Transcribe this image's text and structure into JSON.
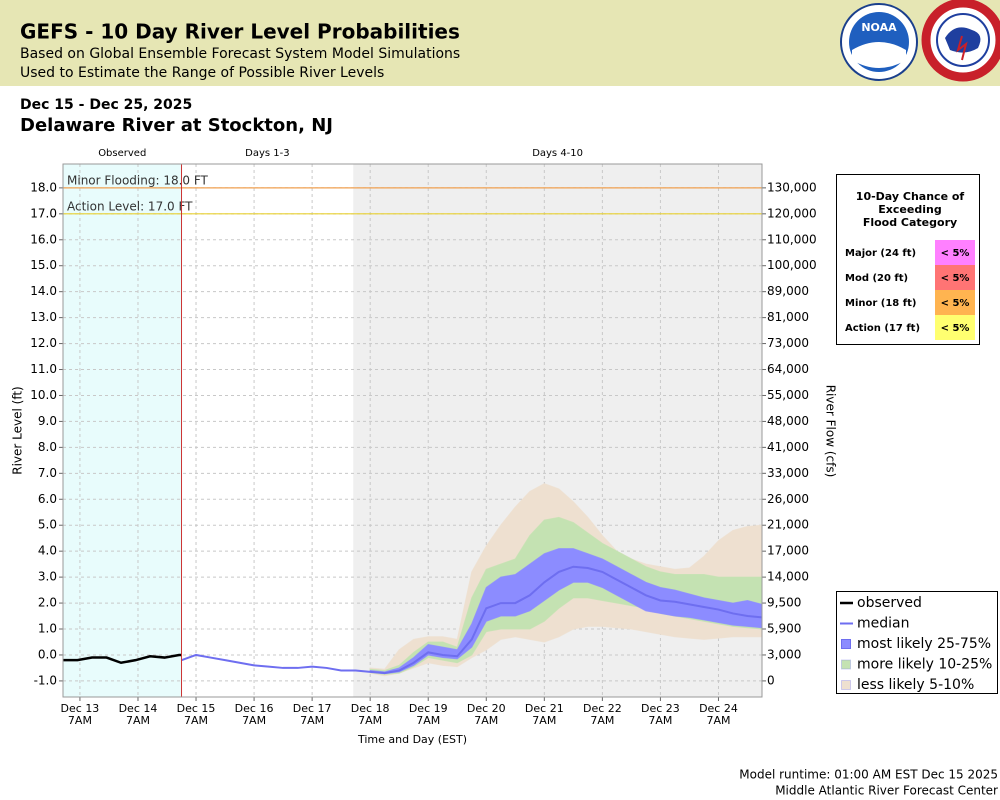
{
  "header": {
    "title": "GEFS - 10 Day River Level Probabilities",
    "subtitle": "Based on Global Ensemble Forecast System Model Simulations",
    "subtitle2": "Used to Estimate the Range of Possible River Levels",
    "logo_text": "NOAA"
  },
  "chart_data": {
    "type": "river-probability",
    "date_range": "Dec 15 - Dec 25, 2025",
    "title": "Delaware River at Stockton, NJ",
    "ylabel": "River Level (ft)",
    "y2label": "River Flow (cfs)",
    "xlabel": "Time and Day (EST)",
    "xlim": [
      "2025-12-13T00:00",
      "2025-12-25T01:00"
    ],
    "ylim": [
      -1.62,
      18.92
    ],
    "grid": true,
    "now_line_color": "#cc3333",
    "xticks": [
      {
        "value": "2025-12-13T07:00",
        "label": "Dec 13\n7AM"
      },
      {
        "value": "2025-12-14T07:00",
        "label": "Dec 14\n7AM"
      },
      {
        "value": "2025-12-15T07:00",
        "label": "Dec 15\n7AM"
      },
      {
        "value": "2025-12-16T07:00",
        "label": "Dec 16\n7AM"
      },
      {
        "value": "2025-12-17T07:00",
        "label": "Dec 17\n7AM"
      },
      {
        "value": "2025-12-18T07:00",
        "label": "Dec 18\n7AM"
      },
      {
        "value": "2025-12-19T07:00",
        "label": "Dec 19\n7AM"
      },
      {
        "value": "2025-12-20T07:00",
        "label": "Dec 20\n7AM"
      },
      {
        "value": "2025-12-21T07:00",
        "label": "Dec 21\n7AM"
      },
      {
        "value": "2025-12-22T07:00",
        "label": "Dec 22\n7AM"
      },
      {
        "value": "2025-12-23T07:00",
        "label": "Dec 23\n7AM"
      },
      {
        "value": "2025-12-24T07:00",
        "label": "Dec 24\n7AM"
      }
    ],
    "yticks": [
      {
        "value": -1,
        "label": "-1.0"
      },
      {
        "value": 0,
        "label": "0.0"
      },
      {
        "value": 1,
        "label": "1.0"
      },
      {
        "value": 2,
        "label": "2.0"
      },
      {
        "value": 3,
        "label": "3.0"
      },
      {
        "value": 4,
        "label": "4.0"
      },
      {
        "value": 5,
        "label": "5.0"
      },
      {
        "value": 6,
        "label": "6.0"
      },
      {
        "value": 7,
        "label": "7.0"
      },
      {
        "value": 8,
        "label": "8.0"
      },
      {
        "value": 9,
        "label": "9.0"
      },
      {
        "value": 10,
        "label": "10.0"
      },
      {
        "value": 11,
        "label": "11.0"
      },
      {
        "value": 12,
        "label": "12.0"
      },
      {
        "value": 13,
        "label": "13.0"
      },
      {
        "value": 14,
        "label": "14.0"
      },
      {
        "value": 15,
        "label": "15.0"
      },
      {
        "value": 16,
        "label": "16.0"
      },
      {
        "value": 17,
        "label": "17.0"
      },
      {
        "value": 18,
        "label": "18.0"
      }
    ],
    "y2ticks": [
      0,
      {
        "value": 3000,
        "label": "3,000"
      },
      {
        "value": 5900,
        "label": "5,900"
      },
      {
        "value": 9500,
        "label": "9,500"
      },
      {
        "value": 14000,
        "label": "14,000"
      },
      {
        "value": 17000,
        "label": "17,000"
      },
      {
        "value": 21000,
        "label": "21,000"
      },
      {
        "value": 26000,
        "label": "26,000"
      },
      {
        "value": 33000,
        "label": "33,000"
      },
      {
        "value": 41000,
        "label": "41,000"
      },
      {
        "value": 48000,
        "label": "48,000"
      },
      {
        "value": 55000,
        "label": "55,000"
      },
      {
        "value": 64000,
        "label": "64,000"
      },
      {
        "value": 73000,
        "label": "73,000"
      },
      {
        "value": 81000,
        "label": "81,000"
      },
      {
        "value": 89000,
        "label": "89,000"
      },
      {
        "value": 100000,
        "label": "100,000"
      },
      {
        "value": 110000,
        "label": "110,000"
      },
      {
        "value": 120000,
        "label": "120,000"
      },
      {
        "value": 130000,
        "label": "130,000"
      }
    ],
    "periods": [
      {
        "label": "Observed",
        "start": "2025-12-13T00:00",
        "end": "2025-12-15T01:00",
        "color": "#e8fcfc"
      },
      {
        "label": "Days 1-3",
        "start": "2025-12-15T01:00",
        "end": "2025-12-18T00:00",
        "color": "#ffffff"
      },
      {
        "label": "Days 4-10",
        "start": "2025-12-18T00:00",
        "end": "2025-12-25T01:00",
        "color": "#efefef"
      }
    ],
    "thresholds": [
      {
        "label": "Minor Flooding: 18.0 FT",
        "value": 18,
        "color": "#f0a050"
      },
      {
        "label": "Action Level: 17.0 FT",
        "value": 17,
        "color": "#e8d030"
      }
    ],
    "series": [
      {
        "name": "observed",
        "color": "#000000",
        "x": [
          "2025-12-13T00:00",
          "2025-12-13T06:00",
          "2025-12-13T12:00",
          "2025-12-13T18:00",
          "2025-12-14T00:00",
          "2025-12-14T06:00",
          "2025-12-14T12:00",
          "2025-12-14T18:00",
          "2025-12-15T00:00",
          "2025-12-15T01:00"
        ],
        "values": [
          -0.2,
          -0.2,
          -0.1,
          -0.1,
          -0.3,
          -0.2,
          -0.05,
          -0.1,
          0.0,
          0.0
        ]
      },
      {
        "name": "median",
        "color": "#6e6ef0",
        "x": [
          "2025-12-15T01:00",
          "2025-12-15T07:00",
          "2025-12-15T13:00",
          "2025-12-15T19:00",
          "2025-12-16T01:00",
          "2025-12-16T07:00",
          "2025-12-16T13:00",
          "2025-12-16T19:00",
          "2025-12-17T01:00",
          "2025-12-17T07:00",
          "2025-12-17T13:00",
          "2025-12-17T19:00",
          "2025-12-18T01:00",
          "2025-12-18T07:00",
          "2025-12-18T13:00",
          "2025-12-18T19:00",
          "2025-12-19T01:00",
          "2025-12-19T07:00",
          "2025-12-19T13:00",
          "2025-12-19T19:00",
          "2025-12-20T01:00",
          "2025-12-20T07:00",
          "2025-12-20T13:00",
          "2025-12-20T19:00",
          "2025-12-21T01:00",
          "2025-12-21T07:00",
          "2025-12-21T13:00",
          "2025-12-21T19:00",
          "2025-12-22T01:00",
          "2025-12-22T07:00",
          "2025-12-22T13:00",
          "2025-12-22T19:00",
          "2025-12-23T01:00",
          "2025-12-23T07:00",
          "2025-12-23T13:00",
          "2025-12-23T19:00",
          "2025-12-24T01:00",
          "2025-12-24T07:00",
          "2025-12-24T13:00",
          "2025-12-24T19:00",
          "2025-12-25T01:00"
        ],
        "values": [
          -0.2,
          0.0,
          -0.1,
          -0.2,
          -0.3,
          -0.4,
          -0.45,
          -0.5,
          -0.5,
          -0.45,
          -0.5,
          -0.6,
          -0.6,
          -0.65,
          -0.7,
          -0.6,
          -0.3,
          0.1,
          0.0,
          -0.05,
          0.6,
          1.8,
          2.0,
          2.0,
          2.3,
          2.8,
          3.2,
          3.4,
          3.35,
          3.2,
          2.9,
          2.6,
          2.3,
          2.1,
          2.05,
          1.95,
          1.85,
          1.75,
          1.6,
          1.5,
          1.45
        ]
      }
    ],
    "bands": [
      {
        "name": "most likely 25-75%",
        "color": "#8c8cff",
        "x": [
          "2025-12-18T07:00",
          "2025-12-18T13:00",
          "2025-12-18T19:00",
          "2025-12-19T01:00",
          "2025-12-19T07:00",
          "2025-12-19T13:00",
          "2025-12-19T19:00",
          "2025-12-20T01:00",
          "2025-12-20T07:00",
          "2025-12-20T13:00",
          "2025-12-20T19:00",
          "2025-12-21T01:00",
          "2025-12-21T07:00",
          "2025-12-21T13:00",
          "2025-12-21T19:00",
          "2025-12-22T01:00",
          "2025-12-22T07:00",
          "2025-12-22T13:00",
          "2025-12-22T19:00",
          "2025-12-23T01:00",
          "2025-12-23T07:00",
          "2025-12-23T13:00",
          "2025-12-23T19:00",
          "2025-12-24T01:00",
          "2025-12-24T07:00",
          "2025-12-24T13:00",
          "2025-12-24T19:00",
          "2025-12-25T01:00"
        ],
        "low": [
          -0.65,
          -0.72,
          -0.65,
          -0.4,
          0.0,
          -0.1,
          -0.15,
          0.3,
          1.3,
          1.5,
          1.5,
          1.7,
          2.1,
          2.5,
          2.8,
          2.8,
          2.6,
          2.3,
          2.0,
          1.7,
          1.6,
          1.5,
          1.45,
          1.35,
          1.25,
          1.15,
          1.1,
          1.05
        ],
        "high": [
          -0.6,
          -0.65,
          -0.5,
          -0.1,
          0.4,
          0.3,
          0.2,
          1.2,
          2.6,
          3.0,
          3.1,
          3.5,
          3.9,
          4.1,
          4.1,
          3.9,
          3.7,
          3.4,
          3.1,
          2.8,
          2.6,
          2.5,
          2.35,
          2.2,
          2.1,
          2.0,
          2.1,
          1.95
        ]
      },
      {
        "name": "more likely 10-25%",
        "color": "#c4e2b2",
        "x": [
          "2025-12-18T07:00",
          "2025-12-18T13:00",
          "2025-12-18T19:00",
          "2025-12-19T01:00",
          "2025-12-19T07:00",
          "2025-12-19T13:00",
          "2025-12-19T19:00",
          "2025-12-20T01:00",
          "2025-12-20T07:00",
          "2025-12-20T13:00",
          "2025-12-20T19:00",
          "2025-12-21T01:00",
          "2025-12-21T07:00",
          "2025-12-21T13:00",
          "2025-12-21T19:00",
          "2025-12-22T01:00",
          "2025-12-22T07:00",
          "2025-12-22T13:00",
          "2025-12-22T19:00",
          "2025-12-23T01:00",
          "2025-12-23T07:00",
          "2025-12-23T13:00",
          "2025-12-23T19:00",
          "2025-12-24T01:00",
          "2025-12-24T07:00",
          "2025-12-24T13:00",
          "2025-12-24T19:00",
          "2025-12-25T01:00"
        ],
        "low": [
          -0.68,
          -0.75,
          -0.7,
          -0.45,
          -0.1,
          -0.2,
          -0.3,
          0.0,
          0.9,
          1.0,
          1.0,
          1.0,
          1.3,
          1.8,
          2.2,
          2.2,
          2.1,
          2.0,
          1.9,
          1.8,
          1.6,
          1.5,
          1.4,
          1.3,
          1.2,
          1.1,
          1.05,
          1.0
        ],
        "high": [
          -0.55,
          -0.6,
          -0.4,
          0.1,
          0.5,
          0.5,
          0.3,
          2.2,
          3.3,
          3.5,
          3.7,
          4.6,
          5.2,
          5.3,
          5.1,
          4.7,
          4.3,
          4.0,
          3.7,
          3.4,
          3.2,
          3.1,
          3.1,
          3.1,
          3.0,
          3.0,
          3.0,
          3.0
        ]
      },
      {
        "name": "less likely 5-10%",
        "color": "#eee0d0",
        "x": [
          "2025-12-18T07:00",
          "2025-12-18T13:00",
          "2025-12-18T19:00",
          "2025-12-19T01:00",
          "2025-12-19T07:00",
          "2025-12-19T13:00",
          "2025-12-19T19:00",
          "2025-12-20T01:00",
          "2025-12-20T07:00",
          "2025-12-20T13:00",
          "2025-12-20T19:00",
          "2025-12-21T01:00",
          "2025-12-21T07:00",
          "2025-12-21T13:00",
          "2025-12-21T19:00",
          "2025-12-22T01:00",
          "2025-12-22T07:00",
          "2025-12-22T13:00",
          "2025-12-22T19:00",
          "2025-12-23T01:00",
          "2025-12-23T07:00",
          "2025-12-23T13:00",
          "2025-12-23T19:00",
          "2025-12-24T01:00",
          "2025-12-24T07:00",
          "2025-12-24T13:00",
          "2025-12-24T19:00",
          "2025-12-25T01:00"
        ],
        "low": [
          -0.7,
          -0.8,
          -0.7,
          -0.5,
          -0.3,
          -0.4,
          -0.45,
          -0.1,
          0.2,
          0.6,
          0.7,
          0.6,
          0.5,
          0.7,
          1.0,
          1.1,
          1.1,
          1.05,
          1.0,
          0.9,
          0.8,
          0.7,
          0.65,
          0.6,
          0.65,
          0.7,
          0.7,
          0.7
        ],
        "high": [
          -0.5,
          -0.55,
          0.2,
          0.6,
          0.7,
          0.7,
          0.6,
          3.2,
          4.2,
          5.0,
          5.7,
          6.3,
          6.6,
          6.4,
          5.9,
          5.3,
          4.6,
          4.0,
          3.7,
          3.5,
          3.4,
          3.3,
          3.35,
          3.8,
          4.4,
          4.8,
          4.95,
          5.0
        ]
      }
    ],
    "flood_table": {
      "title_lines": [
        "10-Day Chance of",
        "Exceeding",
        "Flood Category"
      ],
      "rows": [
        {
          "label": "Major (24 ft)",
          "value": "< 5%",
          "color": "#ff80ff"
        },
        {
          "label": "Mod (20 ft)",
          "value": "< 5%",
          "color": "#ff7474"
        },
        {
          "label": "Minor (18 ft)",
          "value": "< 5%",
          "color": "#ffb450"
        },
        {
          "label": "Action (17 ft)",
          "value": "< 5%",
          "color": "#ffff70"
        }
      ]
    }
  },
  "footer": {
    "runtime": "Model runtime: 01:00 AM EST Dec 15 2025",
    "center": "Middle Atlantic River Forecast Center"
  }
}
